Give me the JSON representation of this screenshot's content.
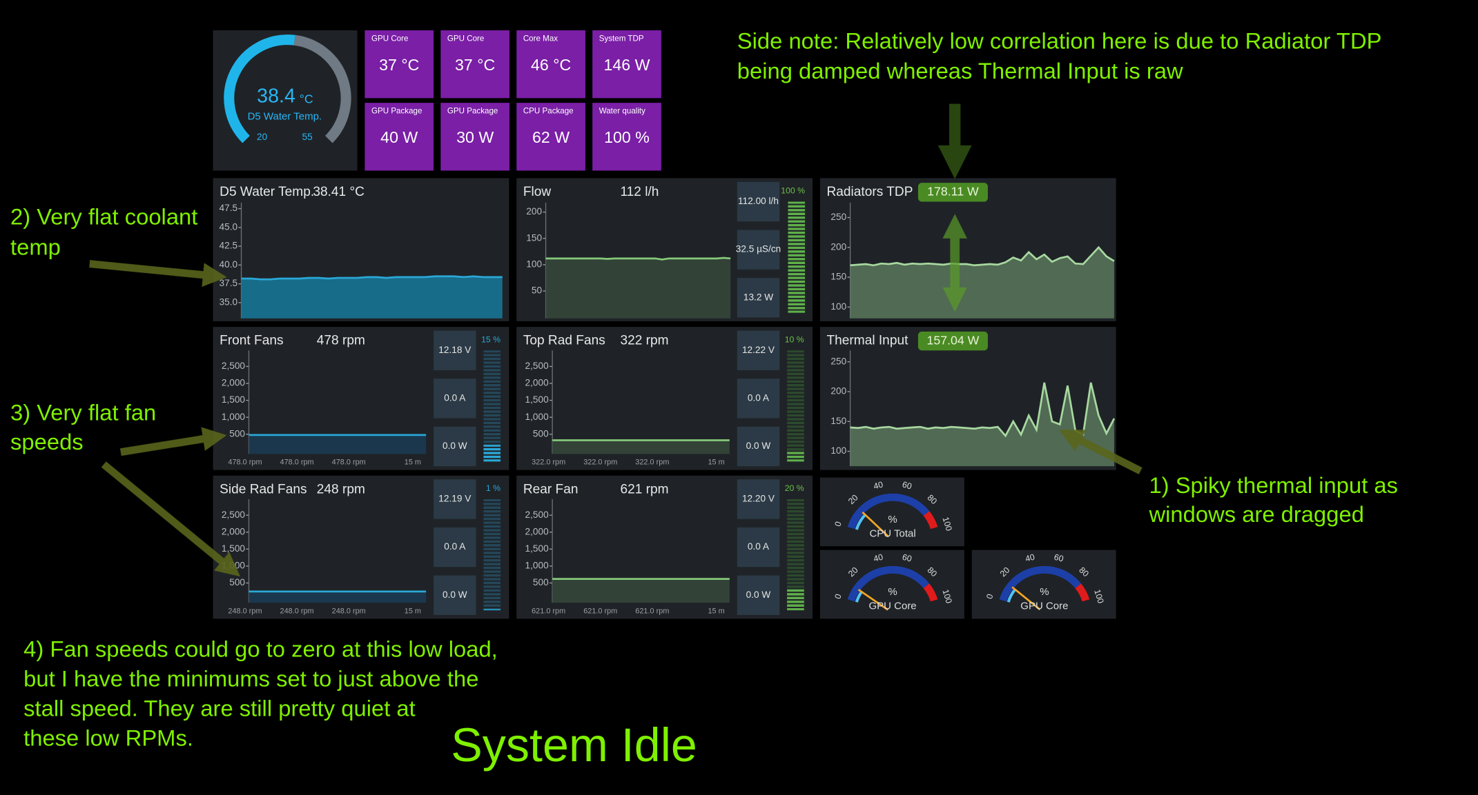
{
  "gauge": {
    "value": 38.4,
    "unit": "°C",
    "label": "D5 Water Temp.",
    "range": [
      20,
      55
    ]
  },
  "tiles": [
    {
      "label": "GPU Core",
      "value": "37 °C"
    },
    {
      "label": "GPU Core",
      "value": "37 °C"
    },
    {
      "label": "Core Max",
      "value": "46 °C"
    },
    {
      "label": "System TDP",
      "value": "146 W"
    },
    {
      "label": "GPU Package",
      "value": "40 W"
    },
    {
      "label": "GPU Package",
      "value": "30 W"
    },
    {
      "label": "CPU Package",
      "value": "62 W"
    },
    {
      "label": "Water quality",
      "value": "100 %"
    }
  ],
  "water_temp": {
    "title": "D5 Water Temp.",
    "reading": "38.41 °C",
    "ylim": [
      32.9,
      48.3
    ],
    "yticks": [
      {
        "value": 35,
        "label": "35.0"
      },
      37.5,
      {
        "value": 40,
        "label": "40.0"
      },
      42.5,
      {
        "value": 45,
        "label": "45.0"
      },
      47.5
    ],
    "values": [
      38.2,
      38.2,
      38.1,
      38.1,
      38.2,
      38.2,
      38.2,
      38.3,
      38.3,
      38.2,
      38.3,
      38.3,
      38.3,
      38.4,
      38.4,
      38.3,
      38.4,
      38.4,
      38.4,
      38.4,
      38.5,
      38.5,
      38.5,
      38.4,
      38.5,
      38.4,
      38.4,
      38.4
    ]
  },
  "flow": {
    "title": "Flow",
    "reading": "112 l/h",
    "ylim": [
      -2,
      218
    ],
    "yticks": [
      50,
      100,
      150,
      200
    ],
    "values": [
      112,
      112,
      112,
      112,
      112,
      112,
      112,
      112,
      112,
      111,
      112,
      112,
      112,
      112,
      112,
      112,
      112,
      110,
      112,
      112,
      112,
      112,
      112,
      112,
      112,
      112,
      113,
      112
    ],
    "side": [
      "112.00 l/h",
      "32.5 µS/cn",
      "13.2 W"
    ],
    "level": 100,
    "level_label": "100 %"
  },
  "radiators_tdp": {
    "title": "Radiators TDP",
    "reading": "178.11 W",
    "ylim": [
      81,
      275
    ],
    "yticks": [
      100,
      150,
      200,
      250
    ],
    "values": [
      170,
      171,
      172,
      170,
      173,
      172,
      174,
      171,
      173,
      172,
      173,
      172,
      171,
      173,
      172,
      172,
      170,
      171,
      172,
      171,
      175,
      183,
      178,
      192,
      180,
      188,
      176,
      182,
      185,
      173,
      172,
      186,
      200,
      185,
      177
    ]
  },
  "thermal_input": {
    "title": "Thermal Input",
    "reading": "157.04 W",
    "ylim": [
      75,
      269
    ],
    "yticks": [
      100,
      150,
      200,
      250
    ],
    "values": [
      140,
      139,
      141,
      138,
      140,
      141,
      138,
      139,
      140,
      141,
      138,
      140,
      139,
      141,
      140,
      139,
      138,
      140,
      139,
      141,
      126,
      150,
      128,
      160,
      136,
      215,
      150,
      145,
      210,
      135,
      128,
      215,
      160,
      130,
      155
    ]
  },
  "fans": [
    {
      "title": "Front Fans",
      "reading": "478 rpm",
      "ylim": [
        -83,
        2972
      ],
      "yticks": [
        500,
        {
          "value": 1000,
          "label": "1,000"
        },
        {
          "value": 1500,
          "label": "1,500"
        },
        {
          "value": 2000,
          "label": "2,000"
        },
        {
          "value": 2500,
          "label": "2,500"
        }
      ],
      "values": [
        478,
        478,
        478,
        478,
        478,
        478,
        478,
        478,
        478,
        478
      ],
      "side": [
        "12.18 V",
        "0.0 A",
        "0.0 W"
      ],
      "duty": 15,
      "duty_label": "15 %",
      "footer": [
        "478.0 rpm",
        "478.0 rpm",
        "478.0 rpm",
        "15 m"
      ]
    },
    {
      "title": "Top Rad Fans",
      "reading": "322 rpm",
      "ylim": [
        -83,
        2972
      ],
      "yticks": [
        500,
        {
          "value": 1000,
          "label": "1,000"
        },
        {
          "value": 1500,
          "label": "1,500"
        },
        {
          "value": 2000,
          "label": "2,000"
        },
        {
          "value": 2500,
          "label": "2,500"
        }
      ],
      "values": [
        322,
        322,
        322,
        322,
        322,
        322,
        322,
        322,
        322,
        322
      ],
      "side": [
        "12.22 V",
        "0.0 A",
        "0.0 W"
      ],
      "duty": 10,
      "duty_label": "10 %",
      "footer": [
        "322.0 rpm",
        "322.0 rpm",
        "322.0 rpm",
        "15 m"
      ]
    },
    {
      "title": "Side Rad Fans",
      "reading": "248 rpm",
      "ylim": [
        -83,
        2972
      ],
      "yticks": [
        500,
        {
          "value": 1000,
          "label": "1,000"
        },
        {
          "value": 1500,
          "label": "1,500"
        },
        {
          "value": 2000,
          "label": "2,000"
        },
        {
          "value": 2500,
          "label": "2,500"
        }
      ],
      "values": [
        248,
        248,
        248,
        248,
        248,
        248,
        248,
        248,
        248,
        248
      ],
      "side": [
        "12.19 V",
        "0.0 A",
        "0.0 W"
      ],
      "duty": 1,
      "duty_label": "1 %",
      "footer": [
        "248.0 rpm",
        "248.0 rpm",
        "248.0 rpm",
        "15 m"
      ]
    },
    {
      "title": "Rear Fan",
      "reading": "621 rpm",
      "ylim": [
        -83,
        2972
      ],
      "yticks": [
        500,
        {
          "value": 1000,
          "label": "1,000"
        },
        {
          "value": 1500,
          "label": "1,500"
        },
        {
          "value": 2000,
          "label": "2,000"
        },
        {
          "value": 2500,
          "label": "2,500"
        }
      ],
      "values": [
        621,
        621,
        621,
        621,
        621,
        621,
        621,
        621,
        621,
        621
      ],
      "side": [
        "12.20 V",
        "0.0 A",
        "0.0 W"
      ],
      "duty": 20,
      "duty_label": "20 %",
      "footer": [
        "621.0 rpm",
        "621.0 rpm",
        "621.0 rpm",
        "15 m"
      ]
    }
  ],
  "dials": [
    {
      "label": "CPU Total",
      "unit": "%",
      "value": 18,
      "range": [
        0,
        100
      ],
      "ticks": [
        0,
        20,
        40,
        60,
        80,
        100
      ],
      "warn_from": 85
    },
    {
      "label": "GPU Core",
      "unit": "%",
      "value": 12,
      "range": [
        0,
        100
      ],
      "ticks": [
        0,
        20,
        40,
        60,
        80,
        100
      ],
      "warn_from": 85
    },
    {
      "label": "GPU Core",
      "unit": "%",
      "value": 15,
      "range": [
        0,
        100
      ],
      "ticks": [
        0,
        20,
        40,
        60,
        80,
        100
      ],
      "warn_from": 85
    }
  ],
  "annotations": {
    "side_note": [
      "Side note: Relatively low correlation here is due to Radiator TDP",
      "being damped whereas Thermal Input is raw"
    ],
    "note_1": [
      "1) Spiky thermal input as",
      "windows are dragged"
    ],
    "note_2": [
      "2) Very flat coolant",
      "temp"
    ],
    "note_3": [
      "3) Very flat fan",
      "speeds"
    ],
    "note_4": [
      "4) Fan speeds could go to zero at this low load,",
      "but I have the minimums set to just above the",
      "stall speed. They are still pretty quiet at",
      "these low RPMs."
    ],
    "caption": "System Idle"
  }
}
